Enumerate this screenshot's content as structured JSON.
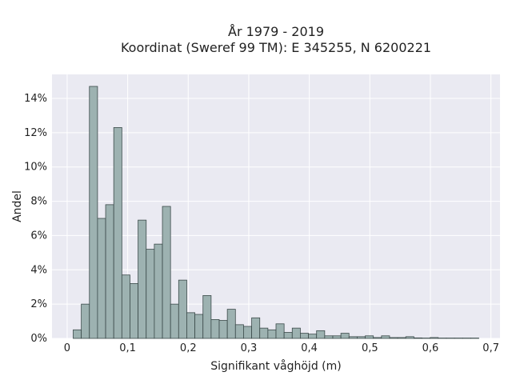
{
  "chart_data": {
    "type": "bar",
    "title_line1": "År 1979 - 2019",
    "title_line2": "Koordinat (Sweref 99 TM): E 345255, N 6200221",
    "xlabel": "Signifikant våghöjd (m)",
    "ylabel": "Andel",
    "xlim": [
      -0.025,
      0.715
    ],
    "ylim": [
      0,
      0.154
    ],
    "xticks": [
      {
        "value": 0,
        "label": "0"
      },
      {
        "value": 0.1,
        "label": "0,1"
      },
      {
        "value": 0.2,
        "label": "0,2"
      },
      {
        "value": 0.3,
        "label": "0,3"
      },
      {
        "value": 0.4,
        "label": "0,4"
      },
      {
        "value": 0.5,
        "label": "0,5"
      },
      {
        "value": 0.6,
        "label": "0,6"
      },
      {
        "value": 0.7,
        "label": "0,7"
      }
    ],
    "yticks": [
      {
        "value": 0,
        "label": "0%"
      },
      {
        "value": 0.02,
        "label": "2%"
      },
      {
        "value": 0.04,
        "label": "4%"
      },
      {
        "value": 0.06,
        "label": "6%"
      },
      {
        "value": 0.08,
        "label": "8%"
      },
      {
        "value": 0.1,
        "label": "10%"
      },
      {
        "value": 0.12,
        "label": "12%"
      },
      {
        "value": 0.14,
        "label": "14%"
      }
    ],
    "grid": true,
    "bin_start": 0.01,
    "bin_width": 0.0134,
    "values": [
      0.005,
      0.02,
      0.147,
      0.07,
      0.078,
      0.123,
      0.037,
      0.032,
      0.069,
      0.052,
      0.055,
      0.077,
      0.02,
      0.034,
      0.015,
      0.014,
      0.025,
      0.011,
      0.0105,
      0.017,
      0.008,
      0.007,
      0.012,
      0.006,
      0.005,
      0.0085,
      0.0035,
      0.006,
      0.003,
      0.0025,
      0.0045,
      0.0015,
      0.0015,
      0.003,
      0.001,
      0.001,
      0.0015,
      0.0005,
      0.0015,
      0.0005,
      0.0005,
      0.001,
      0.0003,
      0.0002,
      0.0005,
      0.0002,
      0.0002,
      0.0002,
      0.0002,
      0.0002
    ],
    "colors": {
      "bar_fill": "#9db2b1",
      "bar_stroke": "#3b4a4a",
      "plot_bg": "#eaeaf2",
      "grid": "#ffffff"
    }
  }
}
